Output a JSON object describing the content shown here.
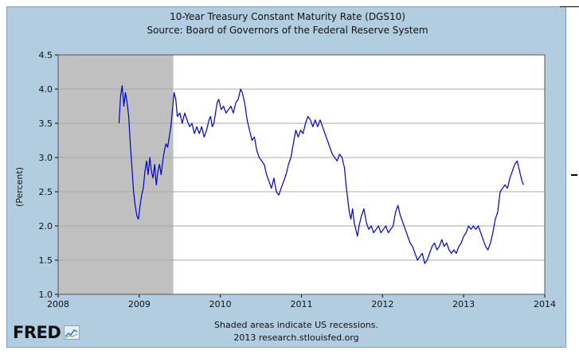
{
  "chart_data": {
    "type": "line",
    "title": "10-Year Treasury Constant Maturity Rate (DGS10)",
    "subtitle": "Source: Board of Governors of the Federal Reserve System",
    "ylabel": "(Percent)",
    "xlabel": "",
    "xlim": [
      2008,
      2014
    ],
    "ylim": [
      1.0,
      4.5
    ],
    "x_ticks": [
      "2008",
      "2009",
      "2010",
      "2011",
      "2012",
      "2013",
      "2014"
    ],
    "y_ticks": [
      "1.0",
      "1.5",
      "2.0",
      "2.5",
      "3.0",
      "3.5",
      "4.0",
      "4.5"
    ],
    "grid": true,
    "recession": {
      "start": 2008.0,
      "end": 2009.42
    },
    "series": [
      {
        "color": "#0000cc",
        "points": [
          [
            2008.75,
            3.5
          ],
          [
            2008.77,
            3.9
          ],
          [
            2008.79,
            4.05
          ],
          [
            2008.81,
            3.75
          ],
          [
            2008.83,
            3.95
          ],
          [
            2008.85,
            3.8
          ],
          [
            2008.87,
            3.6
          ],
          [
            2008.89,
            3.2
          ],
          [
            2008.91,
            2.85
          ],
          [
            2008.93,
            2.5
          ],
          [
            2008.95,
            2.3
          ],
          [
            2008.97,
            2.15
          ],
          [
            2008.99,
            2.1
          ],
          [
            2009.01,
            2.3
          ],
          [
            2009.03,
            2.45
          ],
          [
            2009.05,
            2.55
          ],
          [
            2009.07,
            2.8
          ],
          [
            2009.09,
            2.95
          ],
          [
            2009.11,
            2.75
          ],
          [
            2009.13,
            3.0
          ],
          [
            2009.15,
            2.8
          ],
          [
            2009.17,
            2.7
          ],
          [
            2009.19,
            2.9
          ],
          [
            2009.21,
            2.6
          ],
          [
            2009.23,
            2.8
          ],
          [
            2009.25,
            2.9
          ],
          [
            2009.27,
            2.75
          ],
          [
            2009.29,
            2.95
          ],
          [
            2009.31,
            3.1
          ],
          [
            2009.33,
            3.2
          ],
          [
            2009.35,
            3.15
          ],
          [
            2009.37,
            3.3
          ],
          [
            2009.39,
            3.45
          ],
          [
            2009.41,
            3.7
          ],
          [
            2009.43,
            3.95
          ],
          [
            2009.45,
            3.85
          ],
          [
            2009.47,
            3.6
          ],
          [
            2009.5,
            3.65
          ],
          [
            2009.53,
            3.5
          ],
          [
            2009.56,
            3.65
          ],
          [
            2009.59,
            3.55
          ],
          [
            2009.62,
            3.45
          ],
          [
            2009.65,
            3.5
          ],
          [
            2009.68,
            3.35
          ],
          [
            2009.71,
            3.45
          ],
          [
            2009.74,
            3.35
          ],
          [
            2009.77,
            3.45
          ],
          [
            2009.8,
            3.3
          ],
          [
            2009.83,
            3.4
          ],
          [
            2009.86,
            3.55
          ],
          [
            2009.88,
            3.6
          ],
          [
            2009.9,
            3.45
          ],
          [
            2009.92,
            3.5
          ],
          [
            2009.94,
            3.65
          ],
          [
            2009.96,
            3.8
          ],
          [
            2009.98,
            3.85
          ],
          [
            2010.01,
            3.7
          ],
          [
            2010.04,
            3.75
          ],
          [
            2010.07,
            3.65
          ],
          [
            2010.1,
            3.7
          ],
          [
            2010.13,
            3.75
          ],
          [
            2010.16,
            3.65
          ],
          [
            2010.19,
            3.8
          ],
          [
            2010.22,
            3.85
          ],
          [
            2010.25,
            4.0
          ],
          [
            2010.27,
            3.95
          ],
          [
            2010.3,
            3.8
          ],
          [
            2010.33,
            3.55
          ],
          [
            2010.36,
            3.4
          ],
          [
            2010.39,
            3.25
          ],
          [
            2010.42,
            3.3
          ],
          [
            2010.45,
            3.1
          ],
          [
            2010.48,
            3.0
          ],
          [
            2010.51,
            2.95
          ],
          [
            2010.54,
            2.9
          ],
          [
            2010.57,
            2.75
          ],
          [
            2010.6,
            2.65
          ],
          [
            2010.63,
            2.55
          ],
          [
            2010.66,
            2.7
          ],
          [
            2010.69,
            2.5
          ],
          [
            2010.72,
            2.45
          ],
          [
            2010.75,
            2.55
          ],
          [
            2010.78,
            2.65
          ],
          [
            2010.81,
            2.75
          ],
          [
            2010.84,
            2.9
          ],
          [
            2010.87,
            3.0
          ],
          [
            2010.9,
            3.2
          ],
          [
            2010.93,
            3.4
          ],
          [
            2010.96,
            3.3
          ],
          [
            2010.99,
            3.4
          ],
          [
            2011.02,
            3.35
          ],
          [
            2011.05,
            3.5
          ],
          [
            2011.08,
            3.6
          ],
          [
            2011.11,
            3.55
          ],
          [
            2011.14,
            3.45
          ],
          [
            2011.17,
            3.55
          ],
          [
            2011.2,
            3.45
          ],
          [
            2011.23,
            3.55
          ],
          [
            2011.26,
            3.45
          ],
          [
            2011.29,
            3.35
          ],
          [
            2011.32,
            3.25
          ],
          [
            2011.35,
            3.15
          ],
          [
            2011.38,
            3.05
          ],
          [
            2011.41,
            3.0
          ],
          [
            2011.44,
            2.95
          ],
          [
            2011.47,
            3.05
          ],
          [
            2011.5,
            3.0
          ],
          [
            2011.53,
            2.85
          ],
          [
            2011.55,
            2.6
          ],
          [
            2011.57,
            2.4
          ],
          [
            2011.59,
            2.2
          ],
          [
            2011.61,
            2.1
          ],
          [
            2011.63,
            2.25
          ],
          [
            2011.65,
            2.05
          ],
          [
            2011.67,
            1.95
          ],
          [
            2011.69,
            1.85
          ],
          [
            2011.71,
            2.0
          ],
          [
            2011.74,
            2.15
          ],
          [
            2011.77,
            2.25
          ],
          [
            2011.8,
            2.05
          ],
          [
            2011.83,
            1.95
          ],
          [
            2011.86,
            2.0
          ],
          [
            2011.89,
            1.9
          ],
          [
            2011.92,
            1.95
          ],
          [
            2011.95,
            2.0
          ],
          [
            2011.98,
            1.9
          ],
          [
            2012.01,
            1.95
          ],
          [
            2012.04,
            2.0
          ],
          [
            2012.07,
            1.9
          ],
          [
            2012.1,
            1.95
          ],
          [
            2012.13,
            2.0
          ],
          [
            2012.16,
            2.2
          ],
          [
            2012.19,
            2.3
          ],
          [
            2012.22,
            2.15
          ],
          [
            2012.25,
            2.05
          ],
          [
            2012.28,
            1.95
          ],
          [
            2012.31,
            1.85
          ],
          [
            2012.34,
            1.75
          ],
          [
            2012.37,
            1.7
          ],
          [
            2012.4,
            1.6
          ],
          [
            2012.43,
            1.5
          ],
          [
            2012.46,
            1.55
          ],
          [
            2012.49,
            1.6
          ],
          [
            2012.52,
            1.45
          ],
          [
            2012.55,
            1.5
          ],
          [
            2012.58,
            1.6
          ],
          [
            2012.61,
            1.7
          ],
          [
            2012.64,
            1.75
          ],
          [
            2012.67,
            1.65
          ],
          [
            2012.7,
            1.7
          ],
          [
            2012.73,
            1.8
          ],
          [
            2012.76,
            1.7
          ],
          [
            2012.79,
            1.75
          ],
          [
            2012.82,
            1.65
          ],
          [
            2012.85,
            1.6
          ],
          [
            2012.88,
            1.65
          ],
          [
            2012.91,
            1.6
          ],
          [
            2012.94,
            1.7
          ],
          [
            2012.97,
            1.75
          ],
          [
            2013.0,
            1.85
          ],
          [
            2013.03,
            1.9
          ],
          [
            2013.06,
            2.0
          ],
          [
            2013.09,
            1.95
          ],
          [
            2013.12,
            2.0
          ],
          [
            2013.15,
            1.95
          ],
          [
            2013.18,
            2.0
          ],
          [
            2013.21,
            1.9
          ],
          [
            2013.24,
            1.8
          ],
          [
            2013.27,
            1.7
          ],
          [
            2013.3,
            1.65
          ],
          [
            2013.33,
            1.75
          ],
          [
            2013.36,
            1.9
          ],
          [
            2013.39,
            2.1
          ],
          [
            2013.42,
            2.2
          ],
          [
            2013.45,
            2.5
          ],
          [
            2013.48,
            2.55
          ],
          [
            2013.51,
            2.6
          ],
          [
            2013.54,
            2.55
          ],
          [
            2013.57,
            2.7
          ],
          [
            2013.6,
            2.8
          ],
          [
            2013.63,
            2.9
          ],
          [
            2013.66,
            2.95
          ],
          [
            2013.69,
            2.8
          ],
          [
            2013.72,
            2.65
          ],
          [
            2013.74,
            2.6
          ]
        ]
      }
    ],
    "notes": [
      "Shaded areas indicate US recessions.",
      "2013 research.stlouisfed.org"
    ]
  },
  "branding": {
    "logo_text": "FRED",
    "logo_icon": "chart-line-icon"
  }
}
